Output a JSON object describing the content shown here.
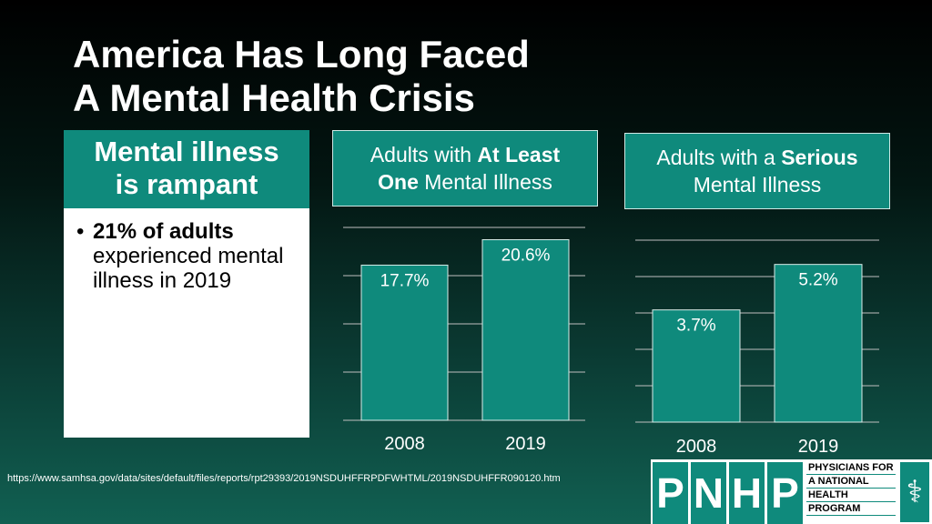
{
  "title": {
    "line1": "America Has Long Faced",
    "line2": "A Mental Health Crisis"
  },
  "left_card": {
    "heading_line1": "Mental illness",
    "heading_line2": "is rampant",
    "bullet_bold": "21% of adults",
    "bullet_rest": "experienced mental illness in 2019"
  },
  "chart_data": [
    {
      "type": "bar",
      "title_parts": [
        "Adults with ",
        "At Least",
        " ",
        "One",
        " Mental Illness"
      ],
      "categories": [
        "2008",
        "2019"
      ],
      "values": [
        17.7,
        20.6
      ],
      "value_labels": [
        "17.7%",
        "20.6%"
      ],
      "grid": true,
      "color": "#0f8a7c"
    },
    {
      "type": "bar",
      "title_parts": [
        "Adults with a ",
        "Serious",
        "Mental Illness"
      ],
      "categories": [
        "2008",
        "2019"
      ],
      "values": [
        3.7,
        5.2
      ],
      "value_labels": [
        "3.7%",
        "5.2%"
      ],
      "grid": true,
      "color": "#0f8a7c"
    }
  ],
  "footer": {
    "source_url": "https://www.samhsa.gov/data/sites/default/files/reports/rpt29393/2019NSDUHFFRPDFWHTML/2019NSDUHFFR090120.htm"
  },
  "logo": {
    "letters": [
      "P",
      "N",
      "H",
      "P"
    ],
    "lines": [
      "PHYSICIANS FOR",
      "A NATIONAL",
      "HEALTH",
      "PROGRAM"
    ],
    "icon": "caduceus-icon"
  }
}
